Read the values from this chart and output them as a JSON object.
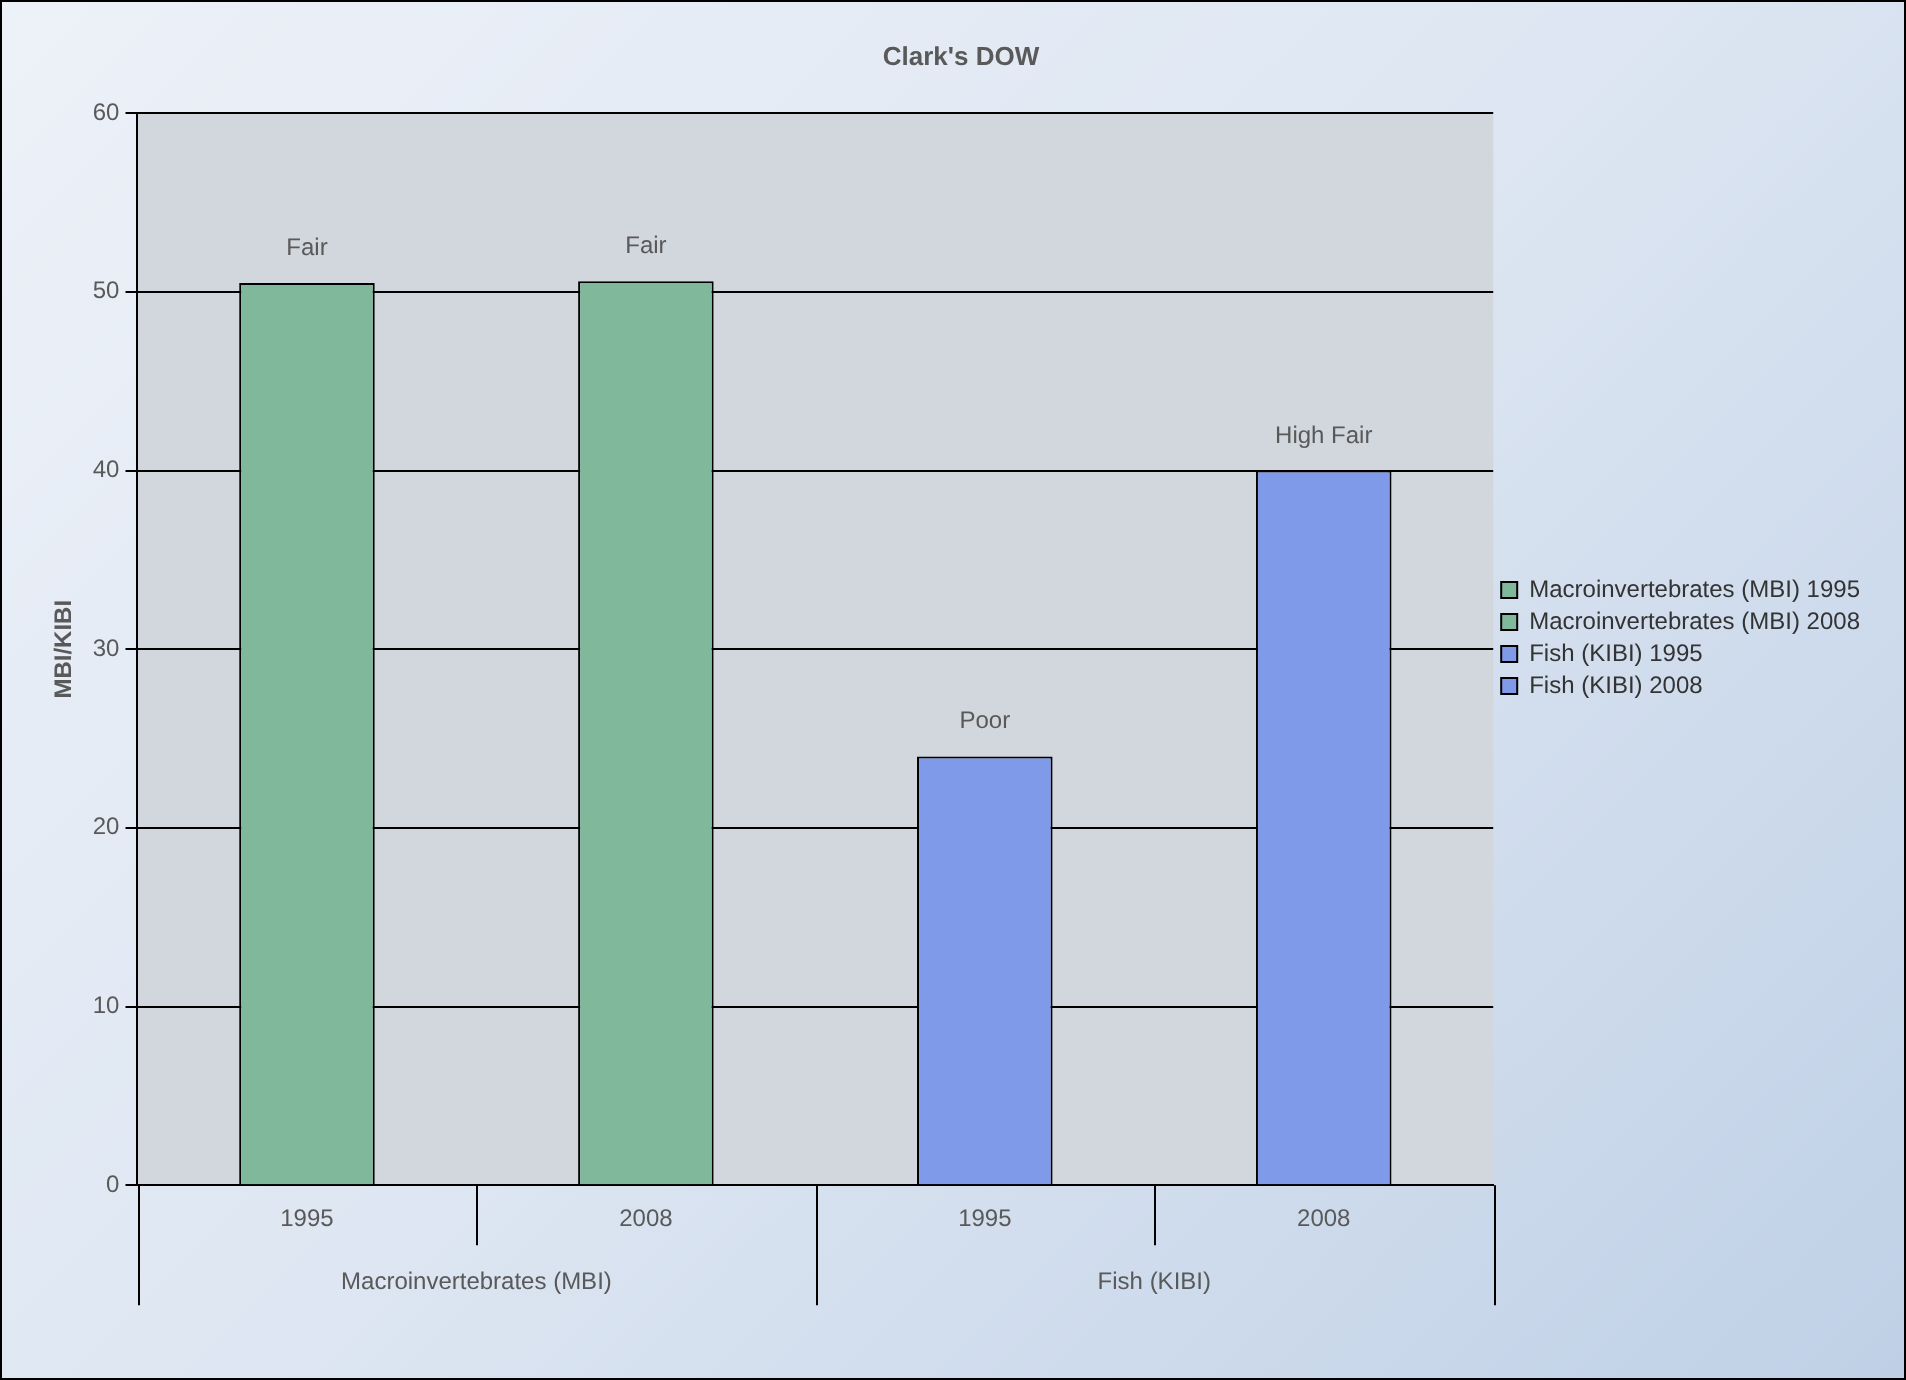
{
  "chart_data": {
    "type": "bar",
    "title": "Clark's DOW",
    "ylabel": "MBI/KIBI",
    "categories": [
      "1995",
      "2008",
      "1995",
      "2008"
    ],
    "stacked": true,
    "ylim": [
      0,
      60
    ],
    "yticks": [
      0,
      10,
      20,
      30,
      40,
      50,
      60
    ],
    "grid": "y",
    "legend": "right",
    "annotations": [
      "Macroinvertebrates (MBI)",
      "Fish (KIBI)"
    ],
    "series": [
      {
        "name": "Macroinvertebrates (MBI) 1995",
        "color": "#80b89c",
        "values": [
          50.5,
          null,
          null,
          null
        ],
        "value_labels": [
          "Fair",
          null,
          null,
          null
        ]
      },
      {
        "name": "Macroinvertebrates (MBI) 2008",
        "color": "#80b89c",
        "values": [
          null,
          50.6,
          null,
          null
        ],
        "value_labels": [
          null,
          "Fair",
          null,
          null
        ]
      },
      {
        "name": "Fish (KIBI) 1995",
        "color": "#7f9ae8",
        "values": [
          null,
          null,
          24,
          null
        ],
        "value_labels": [
          null,
          null,
          "Poor",
          null
        ]
      },
      {
        "name": "Fish (KIBI) 2008",
        "color": "#7f9ae8",
        "values": [
          null,
          null,
          null,
          40
        ],
        "value_labels": [
          null,
          null,
          null,
          "High Fair"
        ]
      }
    ]
  }
}
